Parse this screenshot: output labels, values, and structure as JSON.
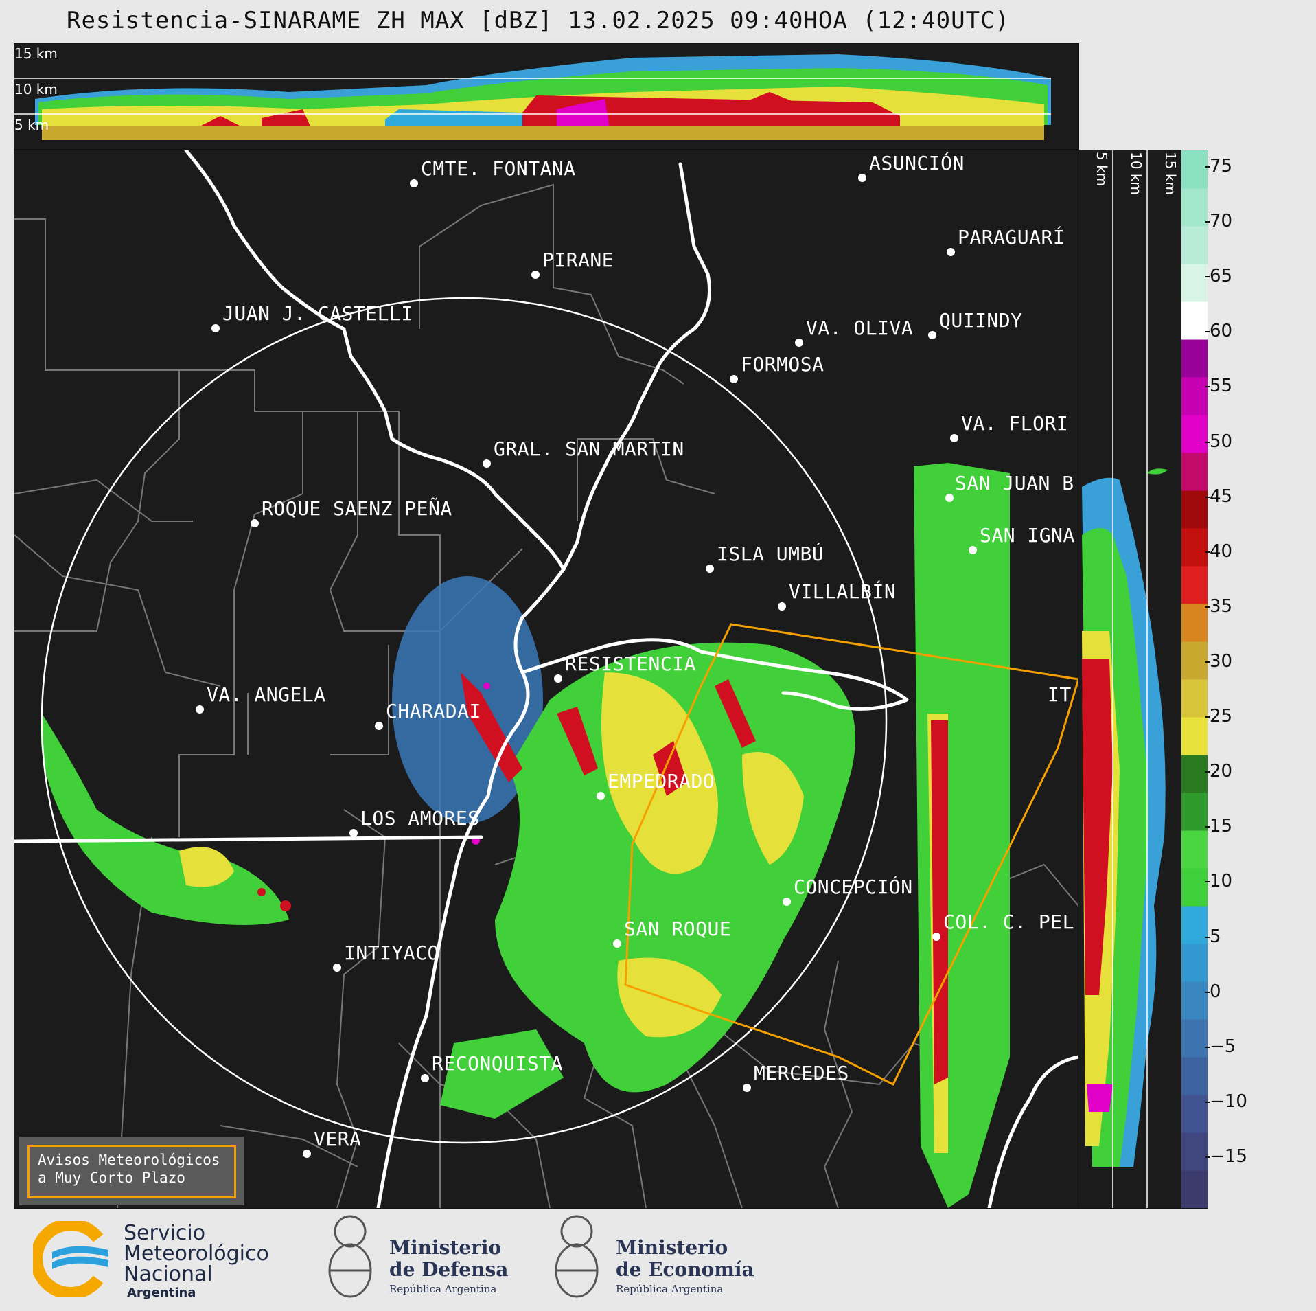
{
  "title": "Resistencia-SINARAME ZH MAX [dBZ] 13.02.2025 09:40HOA (12:40UTC)",
  "top_altitude_labels": [
    "15 km",
    "10 km",
    "5 km"
  ],
  "side_altitude_labels": [
    "5 km",
    "10 km",
    "15 km"
  ],
  "colorbar": {
    "unit": "dBZ",
    "ticks": [
      "75",
      "70",
      "65",
      "60",
      "55",
      "50",
      "45",
      "40",
      "35",
      "30",
      "25",
      "20",
      "15",
      "10",
      "5",
      "0",
      "−5",
      "−10",
      "−15"
    ],
    "colors": [
      "#3c3b6e",
      "#3f4680",
      "#425391",
      "#3d63a0",
      "#3d74b0",
      "#3a86c0",
      "#3398d0",
      "#2fa8dc",
      "#3ecf3a",
      "#49d640",
      "#2e9a2c",
      "#2a7a22",
      "#e8e23a",
      "#d7c438",
      "#c9a830",
      "#d8851f",
      "#e02020",
      "#c40f0f",
      "#a00a0a",
      "#c40a6a",
      "#e000c8",
      "#c800b4",
      "#9a009a",
      "#ffffff",
      "#d8f5e8",
      "#b8ecd8",
      "#a2e6cc",
      "#8ae0c0"
    ]
  },
  "cities": [
    "CMTE. FONTANA",
    "PIRANE",
    "ASUNCIÓN",
    "PARAGUARÍ",
    "JUAN J. CASTELLI",
    "VA. OLIVA",
    "QUIINDY",
    "FORMOSA",
    "VA. FLORI",
    "GRAL. SAN MARTIN",
    "SAN JUAN B",
    "ROQUE SAENZ PEÑA",
    "SAN IGNA",
    "ISLA UMBÚ",
    "VILLALBÍN",
    "RESISTENCIA",
    "VA. ANGELA",
    "CHARADAI",
    "IT",
    "EMPEDRADO",
    "LOS AMORES",
    "CONCEPCIÓN",
    "COL. C. PEL",
    "SAN ROQUE",
    "INTIYACO",
    "RECONQUISTA",
    "MERCEDES",
    "VERA"
  ],
  "warning_label": "Avisos Meteorológicos\na Muy Corto Plazo",
  "warning_color": "#f5a000",
  "logos": {
    "smn": {
      "line1": "Servicio",
      "line2": "Meteorológico",
      "line3": "Nacional",
      "line4": "Argentina"
    },
    "defensa": {
      "line1": "Ministerio",
      "line2": "de Defensa",
      "line3": "República Argentina"
    },
    "economia": {
      "line1": "Ministerio",
      "line2": "de Economía",
      "line3": "República Argentina"
    }
  }
}
